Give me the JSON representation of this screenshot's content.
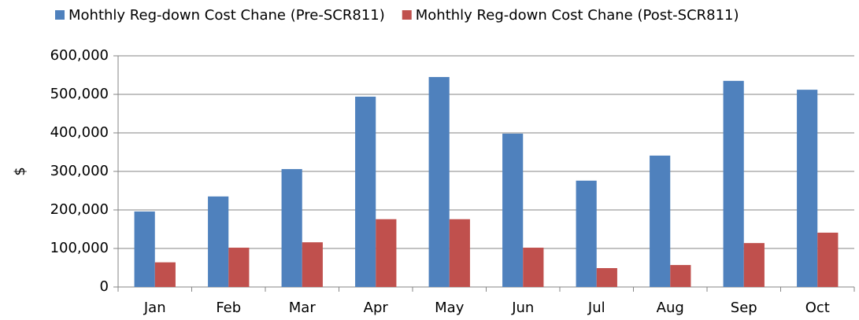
{
  "chart_data": {
    "type": "bar",
    "y_label": "$",
    "categories": [
      "Jan",
      "Feb",
      "Mar",
      "Apr",
      "May",
      "Jun",
      "Jul",
      "Aug",
      "Sep",
      "Oct"
    ],
    "series": [
      {
        "name": "Mohthly Reg-down Cost Chane (Pre-SCR811)",
        "color": "#4f81bd",
        "values": [
          196000,
          235000,
          306000,
          494000,
          545000,
          398000,
          276000,
          341000,
          535000,
          512000
        ]
      },
      {
        "name": "Mohthly Reg-down Cost Chane (Post-SCR811)",
        "color": "#c0504d",
        "values": [
          64000,
          102000,
          116000,
          176000,
          176000,
          102000,
          49000,
          57000,
          114000,
          141000
        ]
      }
    ],
    "ylim": [
      0,
      600000
    ],
    "yticks": [
      0,
      {
        "value": 100000,
        "label": "100,000"
      },
      {
        "value": 200000,
        "label": "200,000"
      },
      {
        "value": 300000,
        "label": "300,000"
      },
      {
        "value": 400000,
        "label": "400,000"
      },
      {
        "value": 500000,
        "label": "500,000"
      },
      {
        "value": 600000,
        "label": "600,000"
      }
    ],
    "grid": true,
    "legend": "top"
  }
}
